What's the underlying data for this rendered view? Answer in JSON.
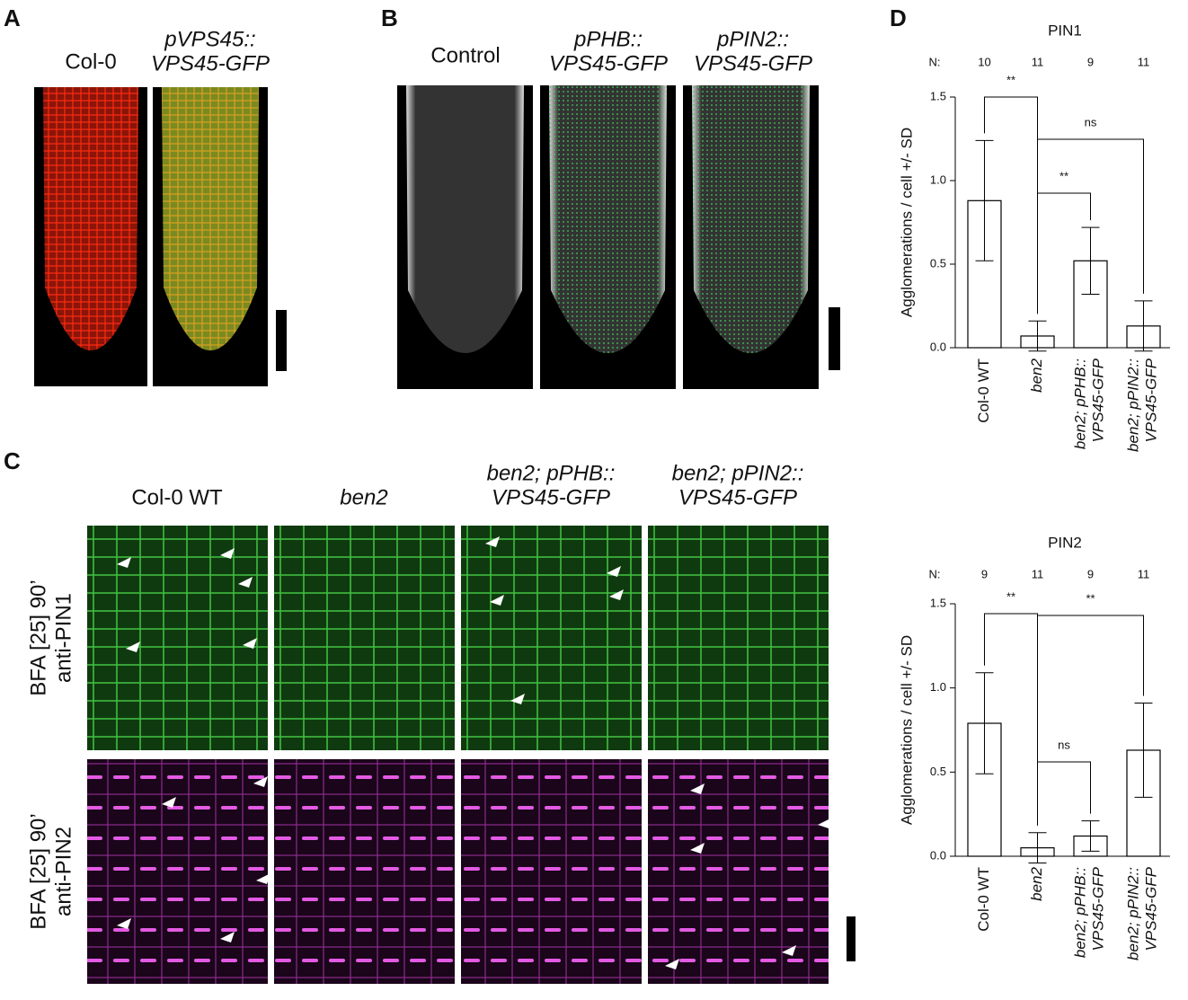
{
  "panels": {
    "A": {
      "letter": "A",
      "labels": [
        [
          "Col-0"
        ],
        [
          "pVPS45::",
          "VPS45-GFP"
        ]
      ]
    },
    "B": {
      "letter": "B",
      "labels": [
        [
          "Control"
        ],
        [
          "pPHB::",
          "VPS45-GFP"
        ],
        [
          "pPIN2::",
          "VPS45-GFP"
        ]
      ]
    },
    "C": {
      "letter": "C",
      "column_labels": [
        [
          "Col-0 WT"
        ],
        [
          "ben2"
        ],
        [
          "ben2; pPHB::",
          "VPS45-GFP"
        ],
        [
          "ben2; pPIN2::",
          "VPS45-GFP"
        ]
      ],
      "row_labels": [
        [
          "BFA [25] 90’",
          "anti-PIN1"
        ],
        [
          "BFA [25] 90’",
          "anti-PIN2"
        ]
      ]
    },
    "D": {
      "letter": "D"
    }
  },
  "chart_data": [
    {
      "type": "bar",
      "title": "PIN1",
      "y_label": "Agglomerations / cell +/- SD",
      "n_label": "N:",
      "n": [
        10,
        11,
        9,
        11
      ],
      "categories": [
        "Col-0 WT",
        "ben2",
        "ben2; pPHB:: VPS45-GFP",
        "ben2; pPIN2:: VPS45-GFP"
      ],
      "values": [
        0.88,
        0.07,
        0.52,
        0.13
      ],
      "errors": [
        0.36,
        0.09,
        0.2,
        0.15
      ],
      "color": "#000000",
      "ylim": [
        0,
        1.5
      ],
      "yticks": [
        {
          "value": 0,
          "label": "0.0"
        },
        0.5,
        {
          "value": 1,
          "label": "1.0"
        },
        1.5
      ],
      "brackets": [
        {
          "label": "**",
          "between": [
            "Col-0 WT",
            "ben2"
          ]
        },
        {
          "label": "ns",
          "between": [
            "ben2",
            "ben2; pPIN2:: VPS45-GFP"
          ]
        },
        {
          "label": "**",
          "between": [
            "ben2",
            "ben2; pPHB:: VPS45-GFP"
          ]
        }
      ]
    },
    {
      "type": "bar",
      "title": "PIN2",
      "y_label": "Agglomerations / cell +/- SD",
      "n_label": "N:",
      "n": [
        9,
        11,
        9,
        11
      ],
      "categories": [
        "Col-0 WT",
        "ben2",
        "ben2; pPHB:: VPS45-GFP",
        "ben2; pPIN2:: VPS45-GFP"
      ],
      "values": [
        0.79,
        0.05,
        0.12,
        0.63
      ],
      "errors": [
        0.3,
        0.09,
        0.09,
        0.28
      ],
      "color": "#000000",
      "ylim": [
        0,
        1.5
      ],
      "yticks": [
        {
          "value": 0,
          "label": "0.0"
        },
        0.5,
        {
          "value": 1,
          "label": "1.0"
        },
        1.5
      ],
      "brackets": [
        {
          "label": "**",
          "between": [
            "Col-0 WT",
            "ben2"
          ]
        },
        {
          "label": "**",
          "between": [
            "ben2",
            "ben2; pPIN2:: VPS45-GFP"
          ]
        },
        {
          "label": "ns",
          "between": [
            "ben2",
            "ben2; pPHB:: VPS45-GFP"
          ]
        }
      ]
    }
  ]
}
